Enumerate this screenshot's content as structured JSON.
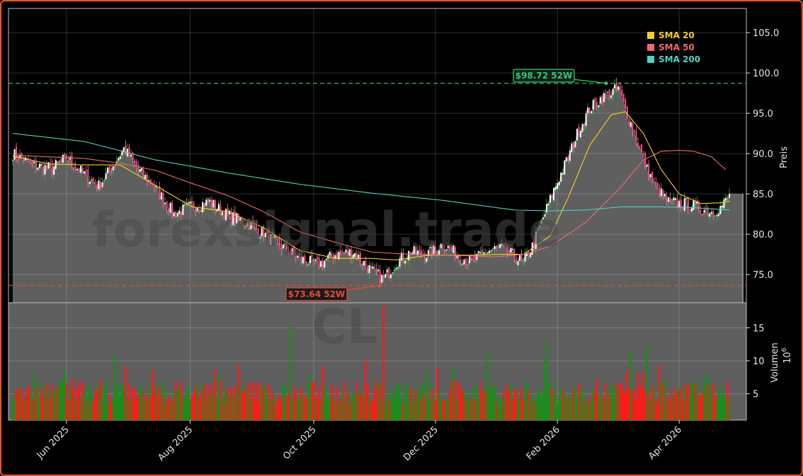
{
  "chart_data": {
    "type": "candlestick",
    "watermark": "forexsignal.trade",
    "watermark_sub": "CL",
    "price_panel": {
      "ylabel": "Preis",
      "ylim": [
        71.5,
        108.0
      ],
      "yticks": [
        75.0,
        80.0,
        85.0,
        90.0,
        95.0,
        100.0,
        105.0
      ],
      "ytick_labels": [
        "75.0",
        "80.0",
        "85.0",
        "90.0",
        "95.0",
        "100.0",
        "105.0"
      ],
      "grid": true,
      "legend_position": "top-right",
      "legend": [
        {
          "name": "SMA 20",
          "color": "#f5d020"
        },
        {
          "name": "SMA 50",
          "color": "#f06a6a"
        },
        {
          "name": "SMA 200",
          "color": "#4fd1c5"
        }
      ],
      "high_52w": {
        "value": 98.72,
        "label": "$98.72 52W",
        "color": "#2ecc71"
      },
      "low_52w": {
        "value": 73.64,
        "label": "$73.64 52W",
        "color": "#e74c3c"
      },
      "close_anchors": [
        [
          0,
          90.0
        ],
        [
          12,
          88.5
        ],
        [
          22,
          88.2
        ],
        [
          30,
          89.5
        ],
        [
          38,
          87.8
        ],
        [
          48,
          86.0
        ],
        [
          57,
          88.9
        ],
        [
          62,
          90.6
        ],
        [
          70,
          88.0
        ],
        [
          80,
          85.6
        ],
        [
          90,
          82.5
        ],
        [
          100,
          83.5
        ],
        [
          110,
          84.0
        ],
        [
          120,
          82.3
        ],
        [
          130,
          81.5
        ],
        [
          140,
          80.0
        ],
        [
          150,
          78.5
        ],
        [
          160,
          77.0
        ],
        [
          170,
          76.2
        ],
        [
          180,
          77.5
        ],
        [
          190,
          77.8
        ],
        [
          200,
          75.5
        ],
        [
          207,
          74.4
        ],
        [
          214,
          76.5
        ],
        [
          222,
          77.8
        ],
        [
          232,
          77.5
        ],
        [
          240,
          78.8
        ],
        [
          248,
          77.5
        ],
        [
          256,
          76.5
        ],
        [
          264,
          77.8
        ],
        [
          272,
          78.4
        ],
        [
          280,
          77.3
        ],
        [
          285,
          76.4
        ],
        [
          290,
          78.5
        ],
        [
          296,
          82.0
        ],
        [
          303,
          86.0
        ],
        [
          310,
          89.5
        ],
        [
          316,
          93.0
        ],
        [
          322,
          95.5
        ],
        [
          328,
          96.8
        ],
        [
          334,
          97.5
        ],
        [
          338,
          98.2
        ],
        [
          342,
          95.5
        ],
        [
          348,
          92.0
        ],
        [
          354,
          88.0
        ],
        [
          360,
          85.5
        ],
        [
          366,
          84.0
        ],
        [
          372,
          83.8
        ],
        [
          378,
          83.7
        ],
        [
          384,
          83.2
        ],
        [
          390,
          82.8
        ],
        [
          395,
          83.3
        ],
        [
          400,
          84.7
        ]
      ],
      "sma20_anchors": [
        [
          0,
          89.7
        ],
        [
          20,
          88.7
        ],
        [
          40,
          88.6
        ],
        [
          60,
          88.6
        ],
        [
          80,
          86.0
        ],
        [
          100,
          83.4
        ],
        [
          120,
          82.8
        ],
        [
          140,
          80.8
        ],
        [
          160,
          78.0
        ],
        [
          180,
          77.0
        ],
        [
          200,
          77.0
        ],
        [
          214,
          76.8
        ],
        [
          232,
          77.4
        ],
        [
          256,
          77.4
        ],
        [
          272,
          77.5
        ],
        [
          285,
          77.5
        ],
        [
          300,
          79.8
        ],
        [
          310,
          84.5
        ],
        [
          322,
          91.0
        ],
        [
          334,
          94.8
        ],
        [
          342,
          95.2
        ],
        [
          352,
          92.5
        ],
        [
          362,
          88.0
        ],
        [
          372,
          85.0
        ],
        [
          384,
          83.8
        ],
        [
          395,
          83.9
        ],
        [
          400,
          84.1
        ]
      ],
      "sma50_anchors": [
        [
          0,
          89.8
        ],
        [
          40,
          89.4
        ],
        [
          60,
          88.8
        ],
        [
          80,
          87.9
        ],
        [
          100,
          86.3
        ],
        [
          120,
          84.8
        ],
        [
          140,
          82.8
        ],
        [
          160,
          80.3
        ],
        [
          180,
          79.0
        ],
        [
          200,
          77.8
        ],
        [
          214,
          77.6
        ],
        [
          240,
          77.4
        ],
        [
          270,
          77.2
        ],
        [
          285,
          77.5
        ],
        [
          300,
          78.5
        ],
        [
          320,
          81.5
        ],
        [
          340,
          86.0
        ],
        [
          352,
          89.2
        ],
        [
          362,
          90.3
        ],
        [
          372,
          90.4
        ],
        [
          380,
          90.3
        ],
        [
          390,
          89.6
        ],
        [
          398,
          88.0
        ]
      ],
      "sma200_anchors": [
        [
          0,
          92.5
        ],
        [
          40,
          91.5
        ],
        [
          80,
          89.2
        ],
        [
          120,
          87.6
        ],
        [
          160,
          86.2
        ],
        [
          200,
          85.1
        ],
        [
          240,
          84.2
        ],
        [
          280,
          83.0
        ],
        [
          300,
          82.9
        ],
        [
          320,
          83.0
        ],
        [
          340,
          83.4
        ],
        [
          360,
          83.4
        ],
        [
          380,
          83.3
        ],
        [
          400,
          83.0
        ]
      ]
    },
    "volume_panel": {
      "ylabel": "Volumen",
      "yunit": "10^6",
      "ylim": [
        1.0,
        18.8
      ],
      "yticks": [
        5,
        10,
        15
      ],
      "ytick_labels": [
        "5",
        "10",
        "15"
      ],
      "grid": true,
      "up_color": "#1e8c1e",
      "down_color": "#ff1a1a"
    },
    "x_axis": {
      "tick_labels": [
        "Jun 2025",
        "Aug 2025",
        "Oct 2025",
        "Dec 2025",
        "Feb 2026",
        "Apr 2026"
      ]
    }
  }
}
